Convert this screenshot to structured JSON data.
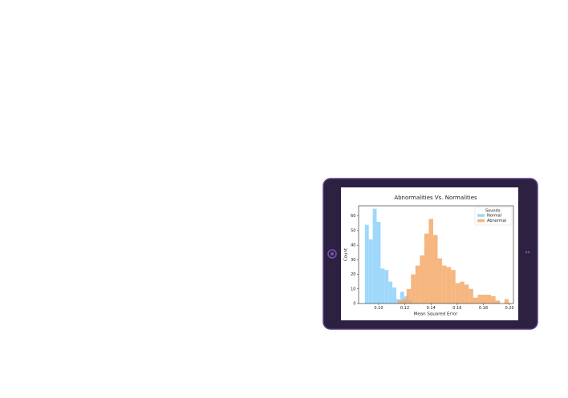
{
  "chart_data": {
    "type": "histogram",
    "title": "Abnormalities Vs. Normalities",
    "x_label": "Mean Squared Error",
    "y_label": "Count",
    "legend_title": "Sounds:",
    "legend": "upper right",
    "xlim": [
      0.0847,
      0.203
    ],
    "ylim": [
      0,
      67
    ],
    "xticks": [
      {
        "value": 0.1,
        "label": "0.10"
      },
      {
        "value": 0.12,
        "label": "0.12"
      },
      {
        "value": 0.14,
        "label": "0.14"
      },
      {
        "value": 0.16,
        "label": "0.16"
      },
      {
        "value": 0.18,
        "label": "0.18"
      },
      {
        "value": 0.2,
        "label": "0.20"
      }
    ],
    "yticks": [
      0,
      10,
      20,
      30,
      40,
      50,
      60
    ],
    "series": [
      {
        "name": "Normal",
        "color": "#87cefa",
        "bins": [
          0.0895,
          0.0925,
          0.0955,
          0.0985,
          0.1015,
          0.1045,
          0.1075,
          0.1105,
          0.1135,
          0.1165,
          0.1195,
          0.1225,
          0.1255
        ],
        "values": [
          54,
          44,
          65,
          56,
          24,
          23,
          15,
          11,
          3,
          8,
          5,
          2
        ]
      },
      {
        "name": "Abnormal",
        "color": "#f4a460",
        "bins": [
          0.1145,
          0.1179,
          0.1213,
          0.1247,
          0.1281,
          0.1315,
          0.1349,
          0.1383,
          0.1417,
          0.1451,
          0.1485,
          0.1519,
          0.1553,
          0.1587,
          0.1621,
          0.1655,
          0.1689,
          0.1723,
          0.1757,
          0.1791,
          0.1825,
          0.1859,
          0.1893,
          0.1927,
          0.1961,
          0.1995
        ],
        "values": [
          2,
          3,
          10,
          20,
          26,
          33,
          48,
          58,
          47,
          31,
          26,
          25,
          23,
          14,
          15,
          13,
          10,
          4,
          6,
          6,
          6,
          5,
          2,
          0,
          3
        ]
      }
    ]
  }
}
